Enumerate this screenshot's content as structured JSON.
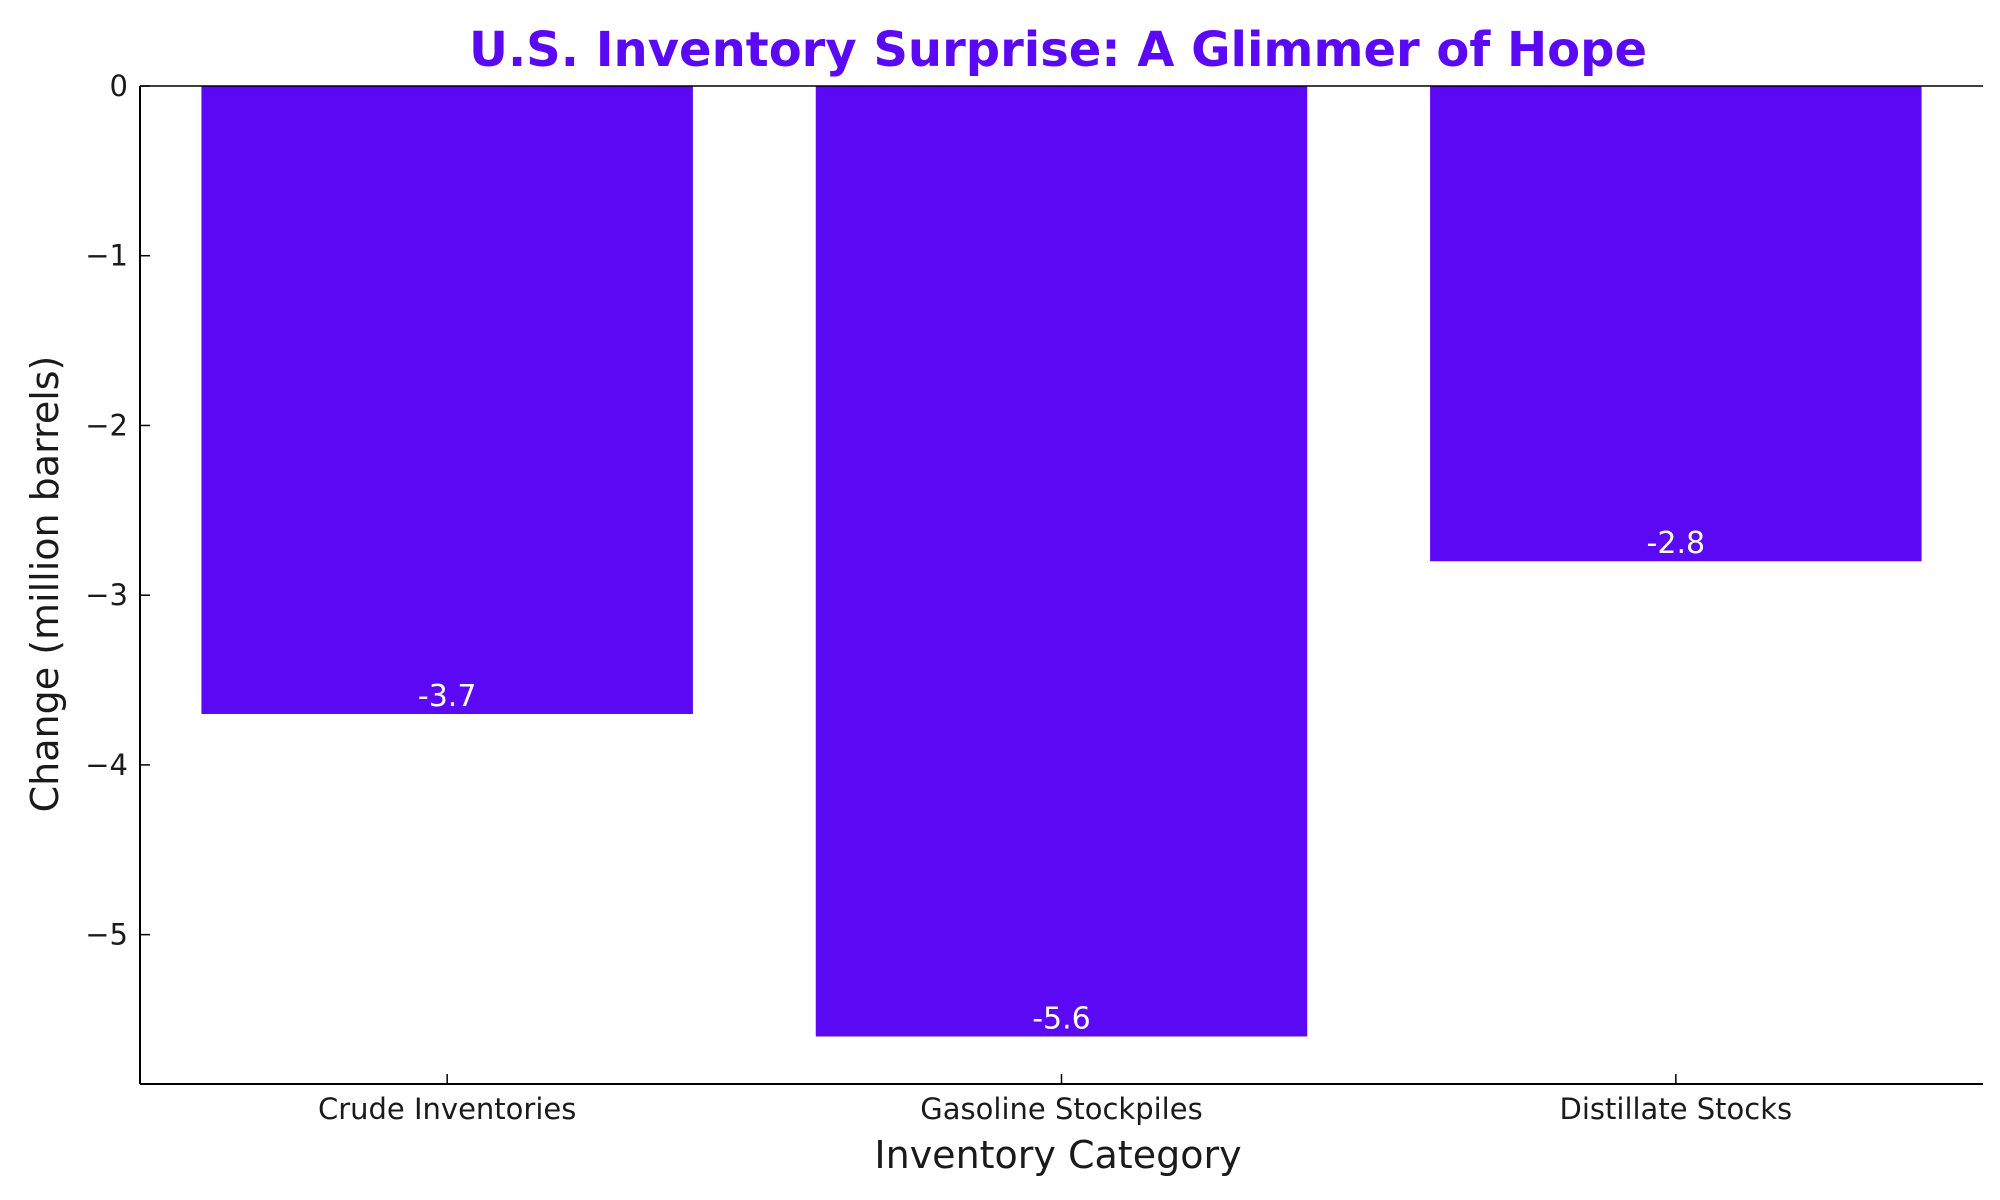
{
  "chart_data": {
    "type": "bar",
    "title": "U.S. Inventory Surprise: A Glimmer of Hope",
    "xlabel": "Inventory Category",
    "ylabel": "Change (million barrels)",
    "categories": [
      "Crude Inventories",
      "Gasoline Stockpiles",
      "Distillate Stocks"
    ],
    "values": [
      -3.7,
      -5.6,
      -2.8
    ],
    "value_labels": [
      "-3.7",
      "-5.6",
      "-2.8"
    ],
    "ylim": [
      -5.88,
      0
    ],
    "yticks": [
      0,
      -1,
      -2,
      -3,
      -4,
      -5
    ],
    "ytick_labels": [
      "0",
      "−1",
      "−2",
      "−3",
      "−4",
      "−5"
    ],
    "grid": false,
    "colors": {
      "bar": "#5b08f5",
      "title": "#5b08f5",
      "axis": "#000000"
    }
  }
}
